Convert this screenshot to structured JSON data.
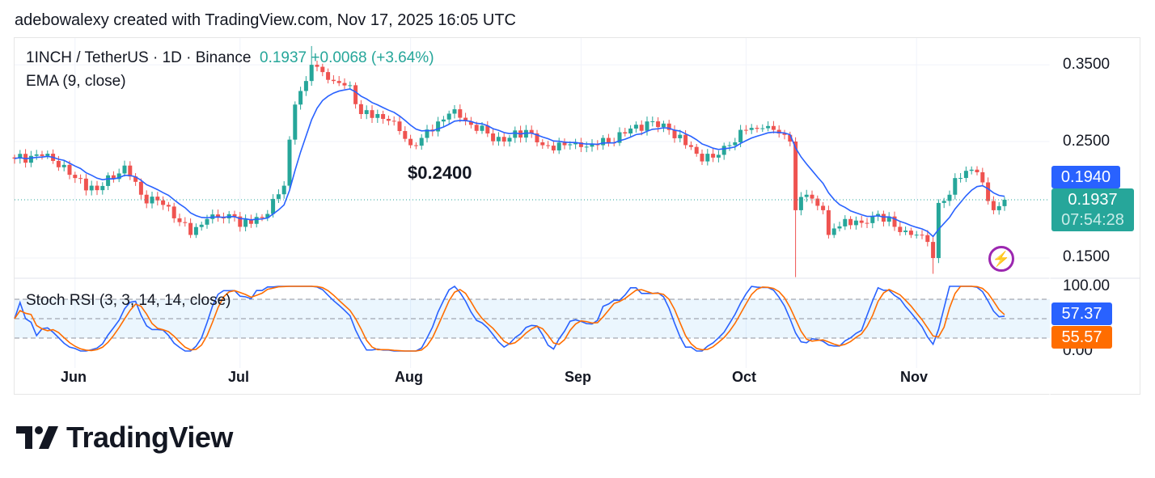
{
  "credit": "adebowalexy created with TradingView.com, Nov 17, 2025 16:05 UTC",
  "legend": {
    "symbol": "1INCH / TetherUS · 1D · Binance",
    "last": "0.1937",
    "change": "+0.0068 (+3.64%)",
    "ema": "EMA (9, close)",
    "stoch": "Stoch RSI (3, 3, 14, 14, close)"
  },
  "annotation": "$0.2400",
  "price_axis": [
    "0.3500",
    "0.2500",
    "0.1500"
  ],
  "stoch_axis": [
    "100.00",
    "0.00"
  ],
  "tags": {
    "ema": "0.1940",
    "price": "0.1937",
    "countdown": "07:54:28",
    "k": "57.37",
    "d": "55.57"
  },
  "months": [
    "Jun",
    "Jul",
    "Aug",
    "Sep",
    "Oct",
    "Nov"
  ],
  "logo": "TradingView",
  "colors": {
    "up": "#26a69a",
    "down": "#ef5350",
    "ema": "#2962ff",
    "k": "#2962ff",
    "d": "#ff6d00",
    "alert": "#9c27b0"
  },
  "chart_data": {
    "type": "candlestick",
    "title": "1INCH / TetherUS · 1D · Binance",
    "start_date": "2025-05-21",
    "y_scale": "log",
    "ylim": [
      0.138,
      0.38
    ],
    "close_keypoints": [
      [
        0,
        0.232
      ],
      [
        6,
        0.237
      ],
      [
        11,
        0.213
      ],
      [
        15,
        0.202
      ],
      [
        20,
        0.225
      ],
      [
        23,
        0.198
      ],
      [
        28,
        0.188
      ],
      [
        32,
        0.166
      ],
      [
        35,
        0.178
      ],
      [
        40,
        0.18
      ],
      [
        41,
        0.172
      ],
      [
        46,
        0.182
      ],
      [
        49,
        0.206
      ],
      [
        51,
        0.294
      ],
      [
        53,
        0.326
      ],
      [
        54,
        0.35
      ],
      [
        56,
        0.339
      ],
      [
        58,
        0.326
      ],
      [
        61,
        0.32
      ],
      [
        63,
        0.282
      ],
      [
        66,
        0.282
      ],
      [
        69,
        0.273
      ],
      [
        72,
        0.246
      ],
      [
        74,
        0.254
      ],
      [
        77,
        0.273
      ],
      [
        80,
        0.288
      ],
      [
        83,
        0.269
      ],
      [
        86,
        0.259
      ],
      [
        89,
        0.25
      ],
      [
        93,
        0.263
      ],
      [
        96,
        0.246
      ],
      [
        100,
        0.246
      ],
      [
        103,
        0.244
      ],
      [
        106,
        0.246
      ],
      [
        111,
        0.259
      ],
      [
        115,
        0.273
      ],
      [
        119,
        0.263
      ],
      [
        124,
        0.237
      ],
      [
        127,
        0.233
      ],
      [
        130,
        0.246
      ],
      [
        133,
        0.263
      ],
      [
        136,
        0.265
      ],
      [
        139,
        0.259
      ],
      [
        141,
        0.25
      ],
      [
        142,
        0.185
      ],
      [
        144,
        0.198
      ],
      [
        147,
        0.185
      ],
      [
        148,
        0.166
      ],
      [
        151,
        0.178
      ],
      [
        154,
        0.175
      ],
      [
        157,
        0.182
      ],
      [
        160,
        0.172
      ],
      [
        163,
        0.166
      ],
      [
        166,
        0.161
      ],
      [
        167,
        0.15
      ],
      [
        168,
        0.191
      ],
      [
        170,
        0.198
      ],
      [
        171,
        0.213
      ],
      [
        174,
        0.221
      ],
      [
        176,
        0.209
      ],
      [
        178,
        0.185
      ],
      [
        180,
        0.1937
      ]
    ],
    "indicators": [
      "EMA 9",
      "Stoch RSI 3,3,14,14"
    ],
    "stoch_levels": [
      80,
      50,
      20
    ],
    "last_values": {
      "close": 0.1937,
      "ema": 0.194,
      "k": 57.37,
      "d": 55.57
    }
  }
}
